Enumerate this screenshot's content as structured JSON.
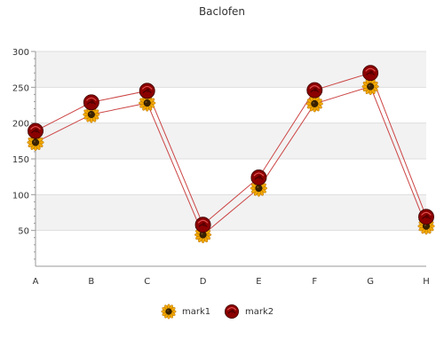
{
  "chart_data": {
    "type": "line",
    "title": "Baclofen",
    "xlabel": "",
    "ylabel": "",
    "categories": [
      "A",
      "B",
      "C",
      "D",
      "E",
      "F",
      "G",
      "H"
    ],
    "ylim": [
      0,
      300
    ],
    "yticks": [
      50,
      100,
      150,
      200,
      250,
      300
    ],
    "grid": true,
    "legend": "bottom-center",
    "line_color": "#cc4444",
    "band_color": "#f2f2f2",
    "series": [
      {
        "name": "mark1",
        "marker": "sunflower-icon",
        "color": "#f2a900",
        "values": [
          173,
          212,
          228,
          44,
          109,
          227,
          251,
          56
        ]
      },
      {
        "name": "mark2",
        "marker": "rose-icon",
        "color": "#8b0000",
        "values": [
          189,
          229,
          245,
          58,
          124,
          246,
          270,
          69
        ]
      }
    ]
  }
}
